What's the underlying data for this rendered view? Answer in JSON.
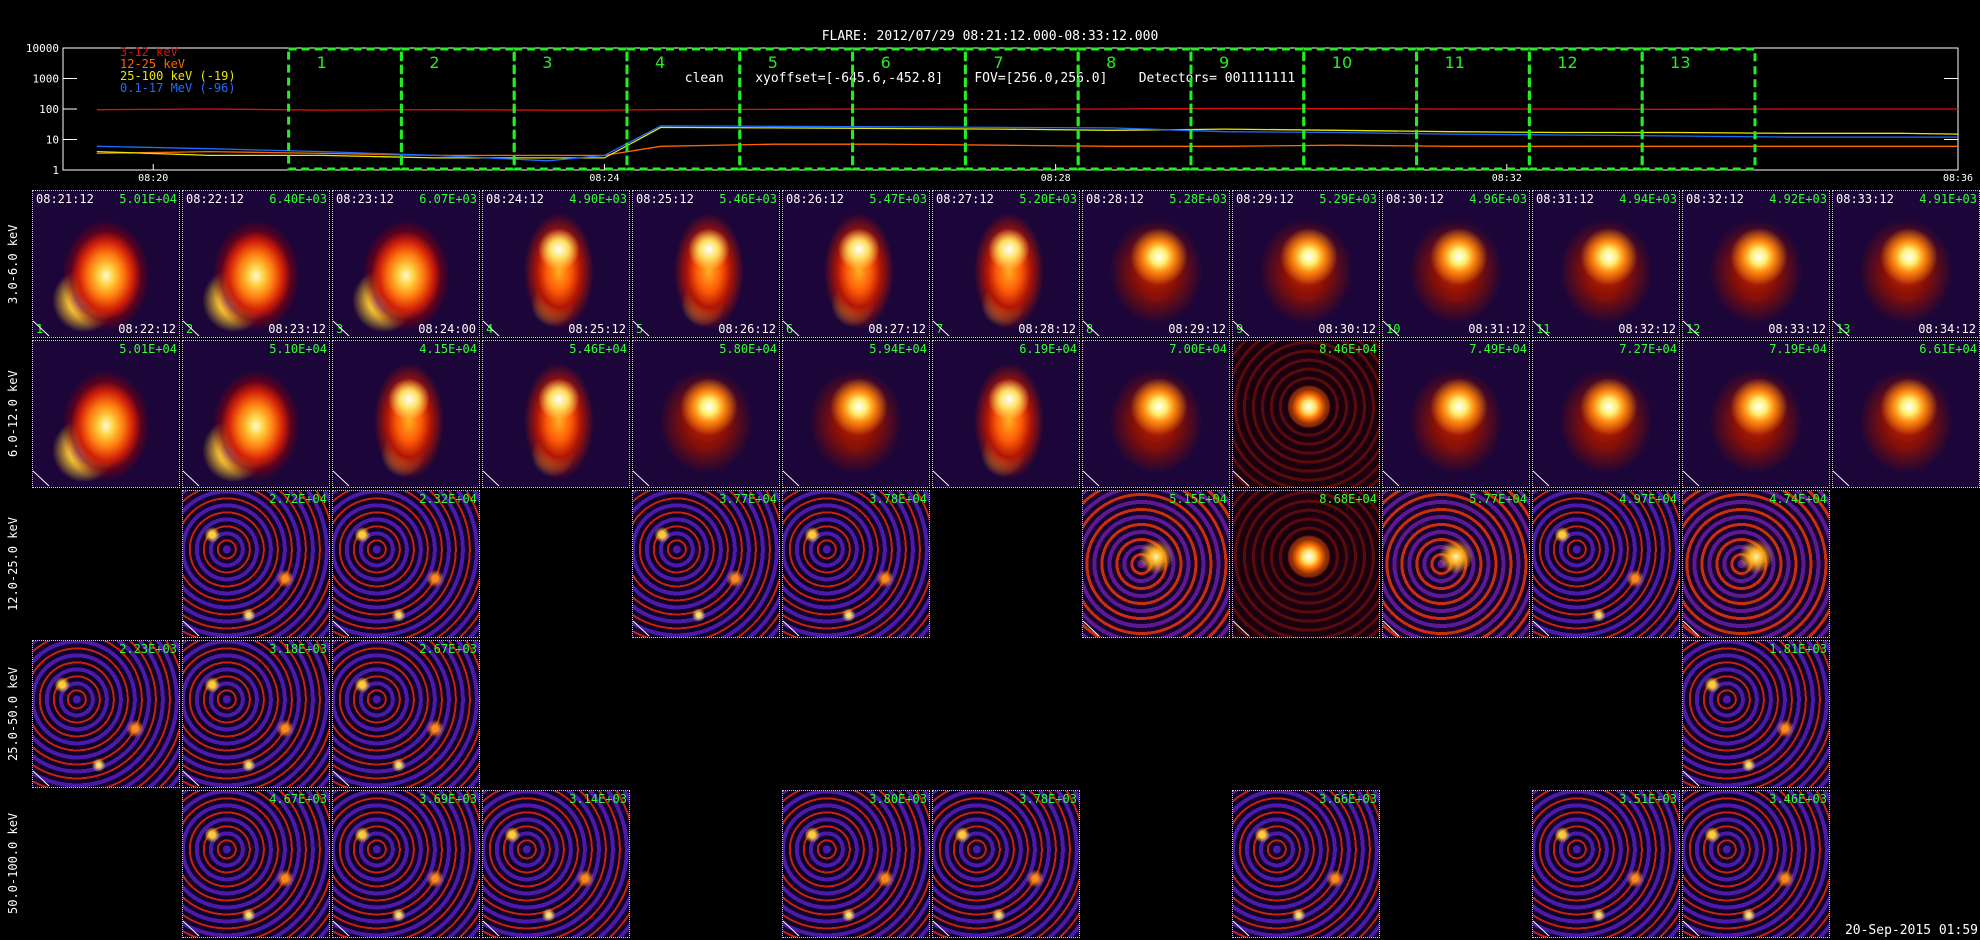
{
  "header": {
    "line1": "FLARE: 2012/07/29 08:21:12.000-08:33:12.000",
    "line2": "clean    xyoffset=[-645.6,-452.8]    FOV=[256.0,256.0]    Detectors= 001111111"
  },
  "lightcurve": {
    "legend": [
      {
        "label": "3-12 keV",
        "color": "#dd1111"
      },
      {
        "label": "12-25 keV",
        "color": "#ff6600"
      },
      {
        "label": "25-100 keV (-19)",
        "color": "#e8e800"
      },
      {
        "label": "0.1-17 MeV (-96)",
        "color": "#1e6cff"
      }
    ],
    "y_ticks": [
      "10000",
      "1000",
      "100",
      "10",
      "1"
    ],
    "x_ticks": [
      "08:20",
      "08:24",
      "08:28",
      "08:32",
      "08:36"
    ],
    "interval_labels": [
      "1",
      "2",
      "3",
      "4",
      "5",
      "6",
      "7",
      "8",
      "9",
      "10",
      "11",
      "12",
      "13"
    ],
    "box_color": "#22ee22",
    "chart_data": {
      "type": "line",
      "y_scale": "log",
      "ylim": [
        1,
        10000
      ],
      "x": [
        "08:19:30",
        "08:20:30",
        "08:21:30",
        "08:22:30",
        "08:23:30",
        "08:24:00",
        "08:24:30",
        "08:25:30",
        "08:26:30",
        "08:27:30",
        "08:28:30",
        "08:29:30",
        "08:30:30",
        "08:31:30",
        "08:32:30",
        "08:33:30",
        "08:34:30",
        "08:35:30",
        "08:36:00"
      ],
      "series": [
        {
          "name": "3-12 keV",
          "values": [
            95,
            100,
            92,
            95,
            92,
            92,
            95,
            98,
            100,
            98,
            100,
            105,
            102,
            100,
            100,
            98,
            100,
            100,
            100
          ]
        },
        {
          "name": "12-25 keV",
          "values": [
            3.5,
            4,
            3.5,
            3,
            3,
            3,
            6,
            7,
            7,
            6.5,
            6,
            6,
            6.5,
            6,
            6,
            6,
            6,
            6,
            6
          ]
        },
        {
          "name": "25-100 keV (-19)",
          "values": [
            4,
            3,
            3,
            2.5,
            2.5,
            2.5,
            25,
            24,
            23,
            22,
            20,
            22,
            20,
            18,
            17,
            17,
            16,
            16,
            15
          ]
        },
        {
          "name": "0.1-17 MeV (-96)",
          "values": [
            6,
            5,
            4,
            3,
            2,
            3,
            28,
            27,
            26,
            25,
            24,
            18,
            17,
            15,
            14,
            13,
            12,
            12,
            12
          ]
        }
      ]
    }
  },
  "row_labels": [
    "3.0-6.0 keV",
    "6.0-12.0 keV",
    "12.0-25.0 keV",
    "25.0-50.0 keV",
    "50.0-100.0 keV"
  ],
  "rows": [
    {
      "tiles": [
        {
          "col": 0,
          "time": "08:21:12",
          "peak": "5.01E+04",
          "end": "08:22:12",
          "idx": "1",
          "style": "flare1"
        },
        {
          "col": 1,
          "time": "08:22:12",
          "peak": "6.40E+03",
          "end": "08:23:12",
          "idx": "2",
          "style": "flare1"
        },
        {
          "col": 2,
          "time": "08:23:12",
          "peak": "6.07E+03",
          "end": "08:24:00",
          "idx": "3",
          "style": "flare1"
        },
        {
          "col": 3,
          "time": "08:24:12",
          "peak": "4.90E+03",
          "end": "08:25:12",
          "idx": "4",
          "style": "flare2"
        },
        {
          "col": 4,
          "time": "08:25:12",
          "peak": "5.46E+03",
          "end": "08:26:12",
          "idx": "5",
          "style": "flare2"
        },
        {
          "col": 5,
          "time": "08:26:12",
          "peak": "5.47E+03",
          "end": "08:27:12",
          "idx": "6",
          "style": "flare2"
        },
        {
          "col": 6,
          "time": "08:27:12",
          "peak": "5.20E+03",
          "end": "08:28:12",
          "idx": "7",
          "style": "flare2"
        },
        {
          "col": 7,
          "time": "08:28:12",
          "peak": "5.28E+03",
          "end": "08:29:12",
          "idx": "8",
          "style": "flare3"
        },
        {
          "col": 8,
          "time": "08:29:12",
          "peak": "5.29E+03",
          "end": "08:30:12",
          "idx": "9",
          "style": "flare3"
        },
        {
          "col": 9,
          "time": "08:30:12",
          "peak": "4.96E+03",
          "end": "08:31:12",
          "idx": "10",
          "style": "flare3"
        },
        {
          "col": 10,
          "time": "08:31:12",
          "peak": "4.94E+03",
          "end": "08:32:12",
          "idx": "11",
          "style": "flare3"
        },
        {
          "col": 11,
          "time": "08:32:12",
          "peak": "4.92E+03",
          "end": "08:33:12",
          "idx": "12",
          "style": "flare3"
        },
        {
          "col": 12,
          "time": "08:33:12",
          "peak": "4.91E+03",
          "end": "08:34:12",
          "idx": "13",
          "style": "flare3"
        }
      ]
    },
    {
      "tiles": [
        {
          "col": 0,
          "peak": "5.01E+04",
          "style": "flare1"
        },
        {
          "col": 1,
          "peak": "5.10E+04",
          "style": "flare1"
        },
        {
          "col": 2,
          "peak": "4.15E+04",
          "style": "flare2"
        },
        {
          "col": 3,
          "peak": "5.46E+04",
          "style": "flare2"
        },
        {
          "col": 4,
          "peak": "5.80E+04",
          "style": "flare3"
        },
        {
          "col": 5,
          "peak": "5.94E+04",
          "style": "flare3"
        },
        {
          "col": 6,
          "peak": "6.19E+04",
          "style": "flare2"
        },
        {
          "col": 7,
          "peak": "7.00E+04",
          "style": "flare3"
        },
        {
          "col": 8,
          "peak": "8.46E+04",
          "style": "ring"
        },
        {
          "col": 9,
          "peak": "7.49E+04",
          "style": "flare3"
        },
        {
          "col": 10,
          "peak": "7.27E+04",
          "style": "flare3"
        },
        {
          "col": 11,
          "peak": "7.19E+04",
          "style": "flare3"
        },
        {
          "col": 12,
          "peak": "6.61E+04",
          "style": "flare3"
        }
      ]
    },
    {
      "tiles": [
        {
          "col": 1,
          "peak": "2.72E+04",
          "style": "noise"
        },
        {
          "col": 2,
          "peak": "2.32E+04",
          "style": "noise"
        },
        {
          "col": 4,
          "peak": "3.77E+04",
          "style": "noise"
        },
        {
          "col": 5,
          "peak": "3.78E+04",
          "style": "noise"
        },
        {
          "col": 7,
          "peak": "5.15E+04",
          "style": "noisyflare"
        },
        {
          "col": 8,
          "peak": "8.68E+04",
          "style": "ring"
        },
        {
          "col": 9,
          "peak": "5.77E+04",
          "style": "noisyflare"
        },
        {
          "col": 10,
          "peak": "4.97E+04",
          "style": "noise"
        },
        {
          "col": 11,
          "peak": "4.74E+04",
          "style": "noisyflare"
        }
      ]
    },
    {
      "tiles": [
        {
          "col": 0,
          "peak": "2.23E+03",
          "style": "noise"
        },
        {
          "col": 1,
          "peak": "3.18E+03",
          "style": "noise"
        },
        {
          "col": 2,
          "peak": "2.67E+03",
          "style": "noise"
        },
        {
          "col": 11,
          "peak": "1.81E+03",
          "style": "noise"
        }
      ]
    },
    {
      "tiles": [
        {
          "col": 1,
          "peak": "4.67E+03",
          "style": "noise"
        },
        {
          "col": 2,
          "peak": "3.69E+03",
          "style": "noise"
        },
        {
          "col": 3,
          "peak": "3.14E+03",
          "style": "noise"
        },
        {
          "col": 5,
          "peak": "3.80E+03",
          "style": "noise"
        },
        {
          "col": 6,
          "peak": "3.78E+03",
          "style": "noise"
        },
        {
          "col": 8,
          "peak": "3.66E+03",
          "style": "noise"
        },
        {
          "col": 10,
          "peak": "3.51E+03",
          "style": "noise"
        },
        {
          "col": 11,
          "peak": "3.46E+03",
          "style": "noise"
        }
      ]
    }
  ],
  "datestamp": "20-Sep-2015 01:59"
}
